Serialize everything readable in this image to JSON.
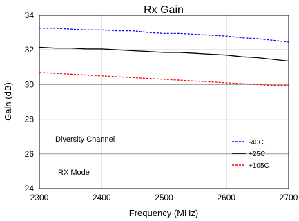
{
  "chart_data": {
    "type": "line",
    "title": "Rx Gain",
    "xlabel": "Frequency (MHz)",
    "ylabel": "Gain (dB)",
    "xlim": [
      2300,
      2700
    ],
    "ylim": [
      24,
      34
    ],
    "xticks": [
      2300,
      2400,
      2500,
      2600,
      2700
    ],
    "yticks": [
      24,
      26,
      28,
      30,
      32,
      34
    ],
    "grid": true,
    "legend_position": "bottom-right",
    "annotations": [
      "Diversity Channel",
      "RX Mode"
    ],
    "series": [
      {
        "name": "-40C",
        "color": "#0000ff",
        "dash": "dashed",
        "x": [
          2300,
          2325,
          2350,
          2375,
          2400,
          2425,
          2450,
          2475,
          2500,
          2525,
          2550,
          2575,
          2600,
          2625,
          2650,
          2675,
          2700
        ],
        "y": [
          33.25,
          33.25,
          33.2,
          33.15,
          33.15,
          33.1,
          33.1,
          33.0,
          32.95,
          32.95,
          32.9,
          32.85,
          32.8,
          32.7,
          32.65,
          32.55,
          32.45
        ]
      },
      {
        "name": "+25C",
        "color": "#000000",
        "dash": "solid",
        "x": [
          2300,
          2325,
          2350,
          2375,
          2400,
          2425,
          2450,
          2475,
          2500,
          2525,
          2550,
          2575,
          2600,
          2625,
          2650,
          2675,
          2700
        ],
        "y": [
          32.15,
          32.1,
          32.1,
          32.05,
          32.05,
          32.0,
          31.95,
          31.9,
          31.85,
          31.85,
          31.8,
          31.75,
          31.7,
          31.6,
          31.55,
          31.45,
          31.35
        ]
      },
      {
        "name": "+105C",
        "color": "#ff0000",
        "dash": "dashed",
        "x": [
          2300,
          2325,
          2350,
          2375,
          2400,
          2425,
          2450,
          2475,
          2500,
          2525,
          2550,
          2575,
          2600,
          2625,
          2650,
          2675,
          2700
        ],
        "y": [
          30.7,
          30.65,
          30.6,
          30.55,
          30.5,
          30.45,
          30.4,
          30.35,
          30.3,
          30.25,
          30.2,
          30.15,
          30.1,
          30.05,
          30.0,
          29.95,
          29.95
        ]
      }
    ]
  }
}
